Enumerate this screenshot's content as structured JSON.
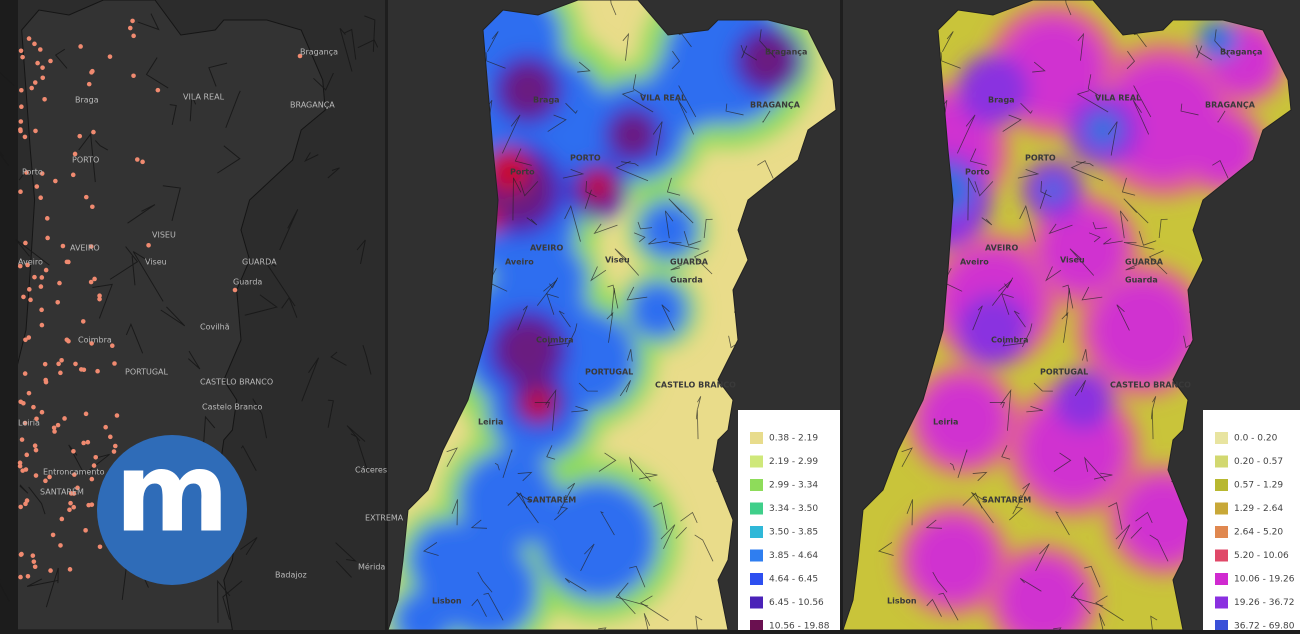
{
  "logo": {
    "text": "m"
  },
  "places": [
    "Bragança",
    "Braga",
    "VILA REAL",
    "BRAGANÇA",
    "Porto",
    "PORTO",
    "AVEIRO",
    "VISEU",
    "Aveiro",
    "Viseu",
    "GUARDA",
    "Guarda",
    "Covilhã",
    "Coimbra",
    "PORTUGAL",
    "CASTELO BRANCO",
    "Castelo Branco",
    "Leiria",
    "Entroncamento",
    "SANTARÉM",
    "Cáceres",
    "EXTREMA",
    "Mérida",
    "Badajoz",
    "Lisbon"
  ],
  "legends": [
    {
      "items": [
        {
          "label": "0.38 - 2.19",
          "color": "#e8dc8c"
        },
        {
          "label": "2.19 - 2.99",
          "color": "#cfe87a"
        },
        {
          "label": "2.99 - 3.34",
          "color": "#8edc5a"
        },
        {
          "label": "3.34 - 3.50",
          "color": "#3fcf8a"
        },
        {
          "label": "3.50 - 3.85",
          "color": "#2fb8d8"
        },
        {
          "label": "3.85 - 4.64",
          "color": "#2f7ef0"
        },
        {
          "label": "4.64 - 6.45",
          "color": "#2d4ff0"
        },
        {
          "label": "6.45 - 10.56",
          "color": "#4a22b8"
        },
        {
          "label": "10.56 - 19.88",
          "color": "#6a1050"
        }
      ]
    },
    {
      "items": [
        {
          "label": "0.0 - 0.20",
          "color": "#e8e4a0"
        },
        {
          "label": "0.20 - 0.57",
          "color": "#d2d870"
        },
        {
          "label": "0.57 - 1.29",
          "color": "#b8b830"
        },
        {
          "label": "1.29 - 2.64",
          "color": "#c8a838"
        },
        {
          "label": "2.64 - 5.20",
          "color": "#e08850"
        },
        {
          "label": "5.20 - 10.06",
          "color": "#e04868"
        },
        {
          "label": "10.06 - 19.26",
          "color": "#d02ad0"
        },
        {
          "label": "19.26 - 36.72",
          "color": "#8a30e0"
        },
        {
          "label": "36.72 - 69.80",
          "color": "#3a50d8"
        }
      ]
    }
  ]
}
